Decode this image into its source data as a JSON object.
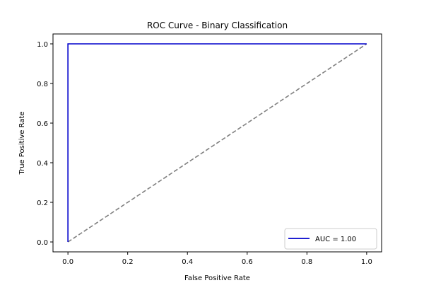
{
  "chart_data": {
    "type": "line",
    "title": "ROC Curve - Binary Classification",
    "xlabel": "False Positive Rate",
    "ylabel": "True Positive Rate",
    "xlim": [
      -0.05,
      1.05
    ],
    "ylim": [
      -0.05,
      1.05
    ],
    "xticks": [
      0.0,
      0.2,
      0.4,
      0.6,
      0.8,
      1.0
    ],
    "yticks": [
      0.0,
      0.2,
      0.4,
      0.6,
      0.8,
      1.0
    ],
    "xtick_labels": [
      "0.0",
      "0.2",
      "0.4",
      "0.6",
      "0.8",
      "1.0"
    ],
    "ytick_labels": [
      "0.0",
      "0.2",
      "0.4",
      "0.6",
      "0.8",
      "1.0"
    ],
    "grid": false,
    "legend_position": "bottom-right",
    "series": [
      {
        "name": "AUC = 1.00",
        "color": "#0000cc",
        "style": "solid",
        "x": [
          0.0,
          0.0,
          1.0
        ],
        "y": [
          0.0,
          1.0,
          1.0
        ]
      },
      {
        "color": "#808080",
        "style": "dashed",
        "x": [
          0.0,
          1.0
        ],
        "y": [
          0.0,
          1.0
        ]
      }
    ]
  }
}
